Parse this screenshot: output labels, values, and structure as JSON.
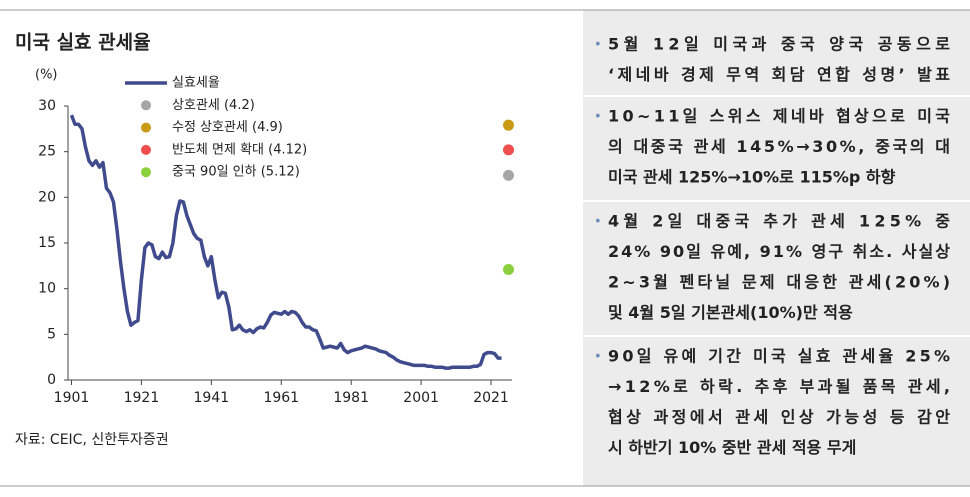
{
  "chart_data": {
    "type": "line",
    "title": "미국 실효 관세율",
    "y_label": "(%)",
    "source": "자료: CEIC, 신한투자증권",
    "xlim": [
      1900,
      2027
    ],
    "xticks": [
      1901,
      1921,
      1941,
      1961,
      1981,
      2001,
      2021
    ],
    "ylim": [
      0,
      30
    ],
    "yticks": [
      0,
      5,
      10,
      15,
      20,
      25,
      30
    ],
    "series": [
      {
        "name": "실효세율",
        "color": "#3f4b8c",
        "x": [
          1901,
          1902,
          1903,
          1904,
          1905,
          1906,
          1907,
          1908,
          1909,
          1910,
          1911,
          1912,
          1913,
          1914,
          1915,
          1916,
          1917,
          1918,
          1919,
          1920,
          1921,
          1922,
          1923,
          1924,
          1925,
          1926,
          1927,
          1928,
          1929,
          1930,
          1931,
          1932,
          1933,
          1934,
          1935,
          1936,
          1937,
          1938,
          1939,
          1940,
          1941,
          1942,
          1943,
          1944,
          1945,
          1946,
          1947,
          1948,
          1949,
          1950,
          1951,
          1952,
          1953,
          1954,
          1955,
          1956,
          1957,
          1958,
          1959,
          1960,
          1961,
          1962,
          1963,
          1964,
          1965,
          1966,
          1967,
          1968,
          1969,
          1970,
          1971,
          1972,
          1973,
          1974,
          1975,
          1976,
          1977,
          1978,
          1979,
          1980,
          1981,
          1982,
          1983,
          1984,
          1985,
          1986,
          1987,
          1988,
          1989,
          1990,
          1991,
          1992,
          1993,
          1994,
          1995,
          1996,
          1997,
          1998,
          1999,
          2000,
          2001,
          2002,
          2003,
          2004,
          2005,
          2006,
          2007,
          2008,
          2009,
          2010,
          2011,
          2012,
          2013,
          2014,
          2015,
          2016,
          2017,
          2018,
          2019,
          2020,
          2021,
          2022,
          2023,
          2024
        ],
        "values": [
          29.0,
          28.0,
          28.0,
          27.5,
          25.5,
          24.0,
          23.5,
          24.0,
          23.3,
          23.8,
          21.0,
          20.5,
          19.5,
          16.5,
          13.0,
          10.0,
          7.5,
          6.0,
          6.3,
          6.5,
          11.0,
          14.5,
          15.0,
          14.8,
          13.5,
          13.3,
          14.0,
          13.4,
          13.5,
          15.0,
          18.0,
          19.6,
          19.5,
          18.0,
          17.0,
          16.0,
          15.5,
          15.3,
          13.5,
          12.5,
          13.5,
          11.0,
          9.0,
          9.6,
          9.5,
          8.0,
          5.5,
          5.6,
          6.0,
          5.5,
          5.3,
          5.5,
          5.2,
          5.6,
          5.8,
          5.7,
          6.3,
          7.1,
          7.4,
          7.3,
          7.2,
          7.5,
          7.2,
          7.5,
          7.4,
          7.0,
          6.3,
          5.8,
          5.8,
          5.5,
          5.4,
          4.5,
          3.5,
          3.6,
          3.7,
          3.6,
          3.5,
          4.0,
          3.3,
          3.0,
          3.2,
          3.3,
          3.4,
          3.5,
          3.7,
          3.6,
          3.5,
          3.4,
          3.2,
          3.1,
          3.0,
          2.7,
          2.5,
          2.2,
          2.0,
          1.9,
          1.8,
          1.7,
          1.6,
          1.6,
          1.6,
          1.6,
          1.5,
          1.5,
          1.4,
          1.4,
          1.4,
          1.3,
          1.3,
          1.4,
          1.4,
          1.4,
          1.4,
          1.4,
          1.4,
          1.5,
          1.5,
          1.7,
          2.8,
          3.0,
          3.0,
          2.9,
          2.4,
          2.4
        ]
      },
      {
        "name": "상호관세 (4.2)",
        "color": "#a6a6a6",
        "marker": "dot",
        "x": [
          2026
        ],
        "values": [
          22.4
        ]
      },
      {
        "name": "수정 상호관세 (4.9)",
        "color": "#c99a14",
        "marker": "dot",
        "x": [
          2026
        ],
        "values": [
          27.9
        ]
      },
      {
        "name": "반도체 면제 확대 (4.12)",
        "color": "#f04e4e",
        "marker": "dot",
        "x": [
          2026
        ],
        "values": [
          25.2
        ]
      },
      {
        "name": "중국 90일 인하 (5.12)",
        "color": "#8ccf3c",
        "marker": "dot",
        "x": [
          2026
        ],
        "values": [
          12.1
        ]
      }
    ]
  },
  "notes": {
    "bullets": [
      {
        "lines": [
          "5월 12일 미국과 중국 양국 공동으로",
          "‘제네바 경제 무역 회담 연합 성명’ 발표"
        ]
      },
      {
        "lines": [
          "10~11일 스위스 제네바 협상으로 미국",
          "의 대중국 관세 145%→30%, 중국의 대",
          "미국 관세 125%→10%로 115%p 하향"
        ]
      },
      {
        "lines": [
          "4월 2일 대중국 추가 관세 125% 중",
          "24% 90일 유예, 91% 영구 취소. 사실상",
          "2~3월 펜타닐 문제 대응한 관세(20%)",
          "및 4월 5일 기본관세(10%)만 적용"
        ]
      },
      {
        "lines": [
          "90일 유예 기간 미국 실효 관세율 25%",
          "→12%로 하락. 추후 부과될 품목 관세,",
          "협상 과정에서 관세 인상 가능성 등 감안",
          "시 하반기 10% 중반 관세 적용 무게"
        ]
      }
    ]
  }
}
